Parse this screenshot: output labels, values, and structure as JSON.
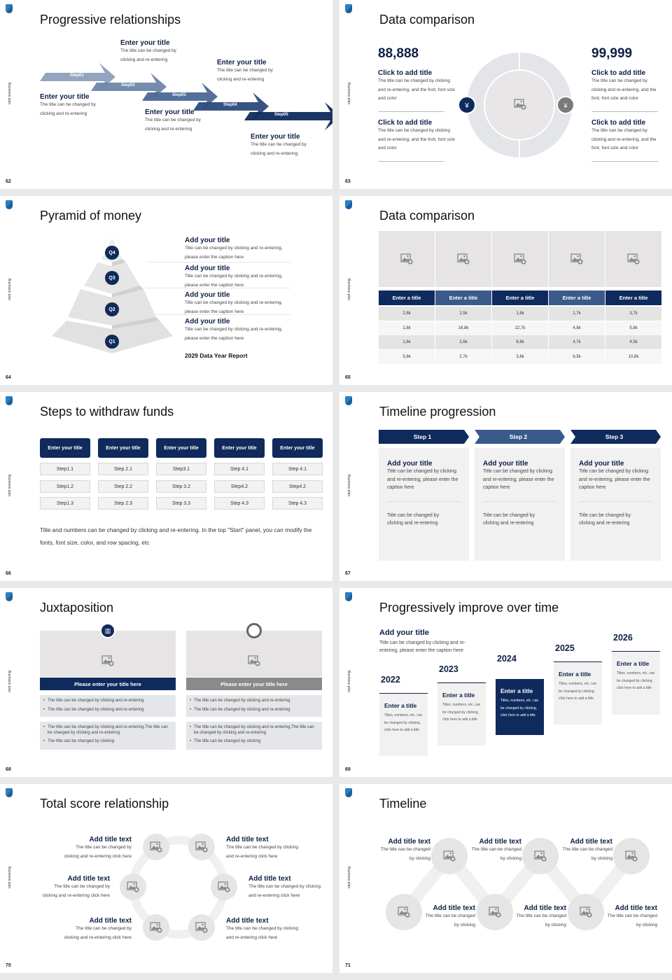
{
  "common": {
    "side_label": "Business plan",
    "logo": "shield-logo"
  },
  "colors": {
    "navy": "#0f2a5c",
    "mid_blue": "#3a5a8a",
    "light_gray": "#e6e4e4"
  },
  "s62": {
    "page": "62",
    "title": "Progressive relationships",
    "steps": [
      "Step01",
      "Step02",
      "Step03",
      "Step04",
      "Step05"
    ],
    "blocks": [
      {
        "title": "Enter your title",
        "desc": "The title can be changed by clicking and re-entering"
      },
      {
        "title": "Enter your title",
        "desc": "The title can be changed by clicking and re-entering"
      },
      {
        "title": "Enter your title",
        "desc": "The title can be changed by clicking and re-entering"
      },
      {
        "title": "Enter your title",
        "desc": "The title can be changed by clicking and re-entering"
      },
      {
        "title": "Enter your title",
        "desc": "The title can be changed by clicking and re-entering"
      }
    ]
  },
  "s63": {
    "page": "63",
    "title": "Data comparison",
    "left_number": "88,888",
    "right_number": "99,999",
    "left": [
      {
        "title": "Click to add title",
        "desc": "The title can be changed by clicking and re-entering, and the font, font size and color"
      },
      {
        "title": "Click to add title",
        "desc": "The title can be changed by clicking and re-entering, and the font, font size and color"
      }
    ],
    "right": [
      {
        "title": "Click to add title",
        "desc": "The title can be changed by clicking and re-entering, and the font, font size and color"
      },
      {
        "title": "Click to add title",
        "desc": "The title can be changed by clicking and re-entering, and the font, font size and color"
      }
    ],
    "icons": [
      "yen-hand-icon",
      "money-bag-icon"
    ]
  },
  "s64": {
    "page": "64",
    "title": "Pyramid of money",
    "levels": [
      "Q4",
      "Q3",
      "Q2",
      "Q1"
    ],
    "items": [
      {
        "title": "Add your title",
        "desc": "Title can be changed by clicking and re-entering, please enter the caption here"
      },
      {
        "title": "Add your title",
        "desc": "Title can be changed by clicking and re-entering, please enter the caption here"
      },
      {
        "title": "Add your title",
        "desc": "Title can be changed by clicking and re-entering, please enter the caption here"
      },
      {
        "title": "Add your title",
        "desc": "Title can be changed by clicking and re-entering, please enter the caption here"
      }
    ],
    "report": "2029 Data Year Report"
  },
  "s65": {
    "page": "65",
    "title": "Data comparison",
    "headers": [
      "Enter a title",
      "Enter a title",
      "Enter a title",
      "Enter a title",
      "Enter a title"
    ],
    "rows": [
      [
        "2,8k",
        "2,5k",
        "1,6k",
        "1,7k",
        "3,7k"
      ],
      [
        "2,8k",
        "16,8k",
        "22,7k",
        "4,8k",
        "5,8k"
      ],
      [
        "1,6k",
        "2,6k",
        "6,8k",
        "4,7k",
        "4,5k"
      ],
      [
        "5,8k",
        "2.7k",
        "3,6k",
        "6,5k",
        "10,8k"
      ]
    ]
  },
  "s66": {
    "page": "66",
    "title": "Steps to withdraw funds",
    "headers": [
      "Enter your title",
      "Enter your title",
      "Enter your title",
      "Enter your title",
      "Enter your title"
    ],
    "steps": [
      [
        "Step1.1",
        "Step1.2",
        "Step1.3"
      ],
      [
        "Step 2.1",
        "Step 2.2",
        "Step 2.3"
      ],
      [
        "Step3.1",
        "Step 3.2",
        "Step 3.3"
      ],
      [
        "Step 4.1",
        "Step4.2",
        "Step 4.3"
      ],
      [
        "Step 4.1",
        "Step4.2",
        "Step 4.3"
      ]
    ],
    "note": "Title and numbers can be changed by clicking and re-entering. In the top \"Start\" panel, you can modify the fonts, font size, color, and row spacing, etc"
  },
  "s67": {
    "page": "67",
    "title": "Timeline progression",
    "steps": [
      {
        "label": "Step 1",
        "title": "Add your title",
        "desc": "Title can be changed by clicking and re-entering, please enter the caption here",
        "note": "Title can be changed by clicking and re-entering"
      },
      {
        "label": "Step 2",
        "title": "Add your title",
        "desc": "Title can be changed by clicking and re-entering, please enter the caption here",
        "note": "Title can be changed by clicking and re-entering"
      },
      {
        "label": "Step 3",
        "title": "Add your title",
        "desc": "Title can be changed by clicking and re-entering, please enter the caption here",
        "note": "Title can be changed by clicking and re-entering"
      }
    ]
  },
  "s68": {
    "page": "68",
    "title": "Juxtaposition",
    "panels": [
      {
        "icon": "bar-chart-icon",
        "title": "Please enter your title here",
        "box1": [
          "The title can be changed by clicking and re-entering",
          "The title can be changed by clicking and re-entering"
        ],
        "box2": [
          "The title can be changed by clicking and re-entering,The title can be changed by clicking and re-entering",
          "The title can be changed by clicking"
        ]
      },
      {
        "icon": "clock-icon",
        "title": "Please enter your title here",
        "box1": [
          "The title can be changed by clicking and re-entering",
          "The title can be changed by clicking and re-entering"
        ],
        "box2": [
          "The title can be changed by clicking and re-entering,The title can be changed by clicking and re-entering",
          "The title can be changed by clicking"
        ]
      }
    ]
  },
  "s69": {
    "page": "69",
    "title": "Progressively improve over time",
    "intro_title": "Add your title",
    "intro_desc": "Title can be changed by clicking and re-entering, please enter the caption here",
    "years": [
      {
        "year": "2022",
        "title": "Enter a title",
        "desc": "Titles, numbers, etc. can be changed by clicking, click here to add a title"
      },
      {
        "year": "2023",
        "title": "Enter a title",
        "desc": "Titles, numbers, etc. can be changed by clicking, click here to add a title"
      },
      {
        "year": "2024",
        "title": "Enter a title",
        "desc": "Titles, numbers, etc. can be changed by clicking, click here to add a title"
      },
      {
        "year": "2025",
        "title": "Enter a title",
        "desc": "Titles, numbers, etc. can be changed by clicking, click here to add a title"
      },
      {
        "year": "2026",
        "title": "Enter a title",
        "desc": "Titles, numbers, etc. can be changed by clicking, click here to add a title"
      }
    ]
  },
  "s70": {
    "page": "70",
    "title": "Total score relationship",
    "items": [
      {
        "title": "Add title text",
        "desc": "The title can be changed by clicking and re-entering click here"
      },
      {
        "title": "Add title text",
        "desc": "The title can be changed by clicking and re-entering click here"
      },
      {
        "title": "Add title text",
        "desc": "The title can be changed by clicking and re-entering click here"
      },
      {
        "title": "Add title text",
        "desc": "The title can be changed by clicking and re-entering click here"
      },
      {
        "title": "Add title text",
        "desc": "The title can be changed by clicking and re-entering click here"
      },
      {
        "title": "Add title text",
        "desc": "The title can be changed by clicking and re-entering click here"
      }
    ]
  },
  "s71": {
    "page": "71",
    "title": "Timeline",
    "items": [
      {
        "title": "Add title text",
        "desc": "The title can be changed by clicking"
      },
      {
        "title": "Add title text",
        "desc": "The title can be changed by clicking"
      },
      {
        "title": "Add title text",
        "desc": "The title can be changed by clicking"
      },
      {
        "title": "Add title text",
        "desc": "The title can be changed by clicking"
      },
      {
        "title": "Add title text",
        "desc": "The title can be changed by clicking"
      },
      {
        "title": "Add title text",
        "desc": "The title can be changed by clicking"
      }
    ]
  }
}
